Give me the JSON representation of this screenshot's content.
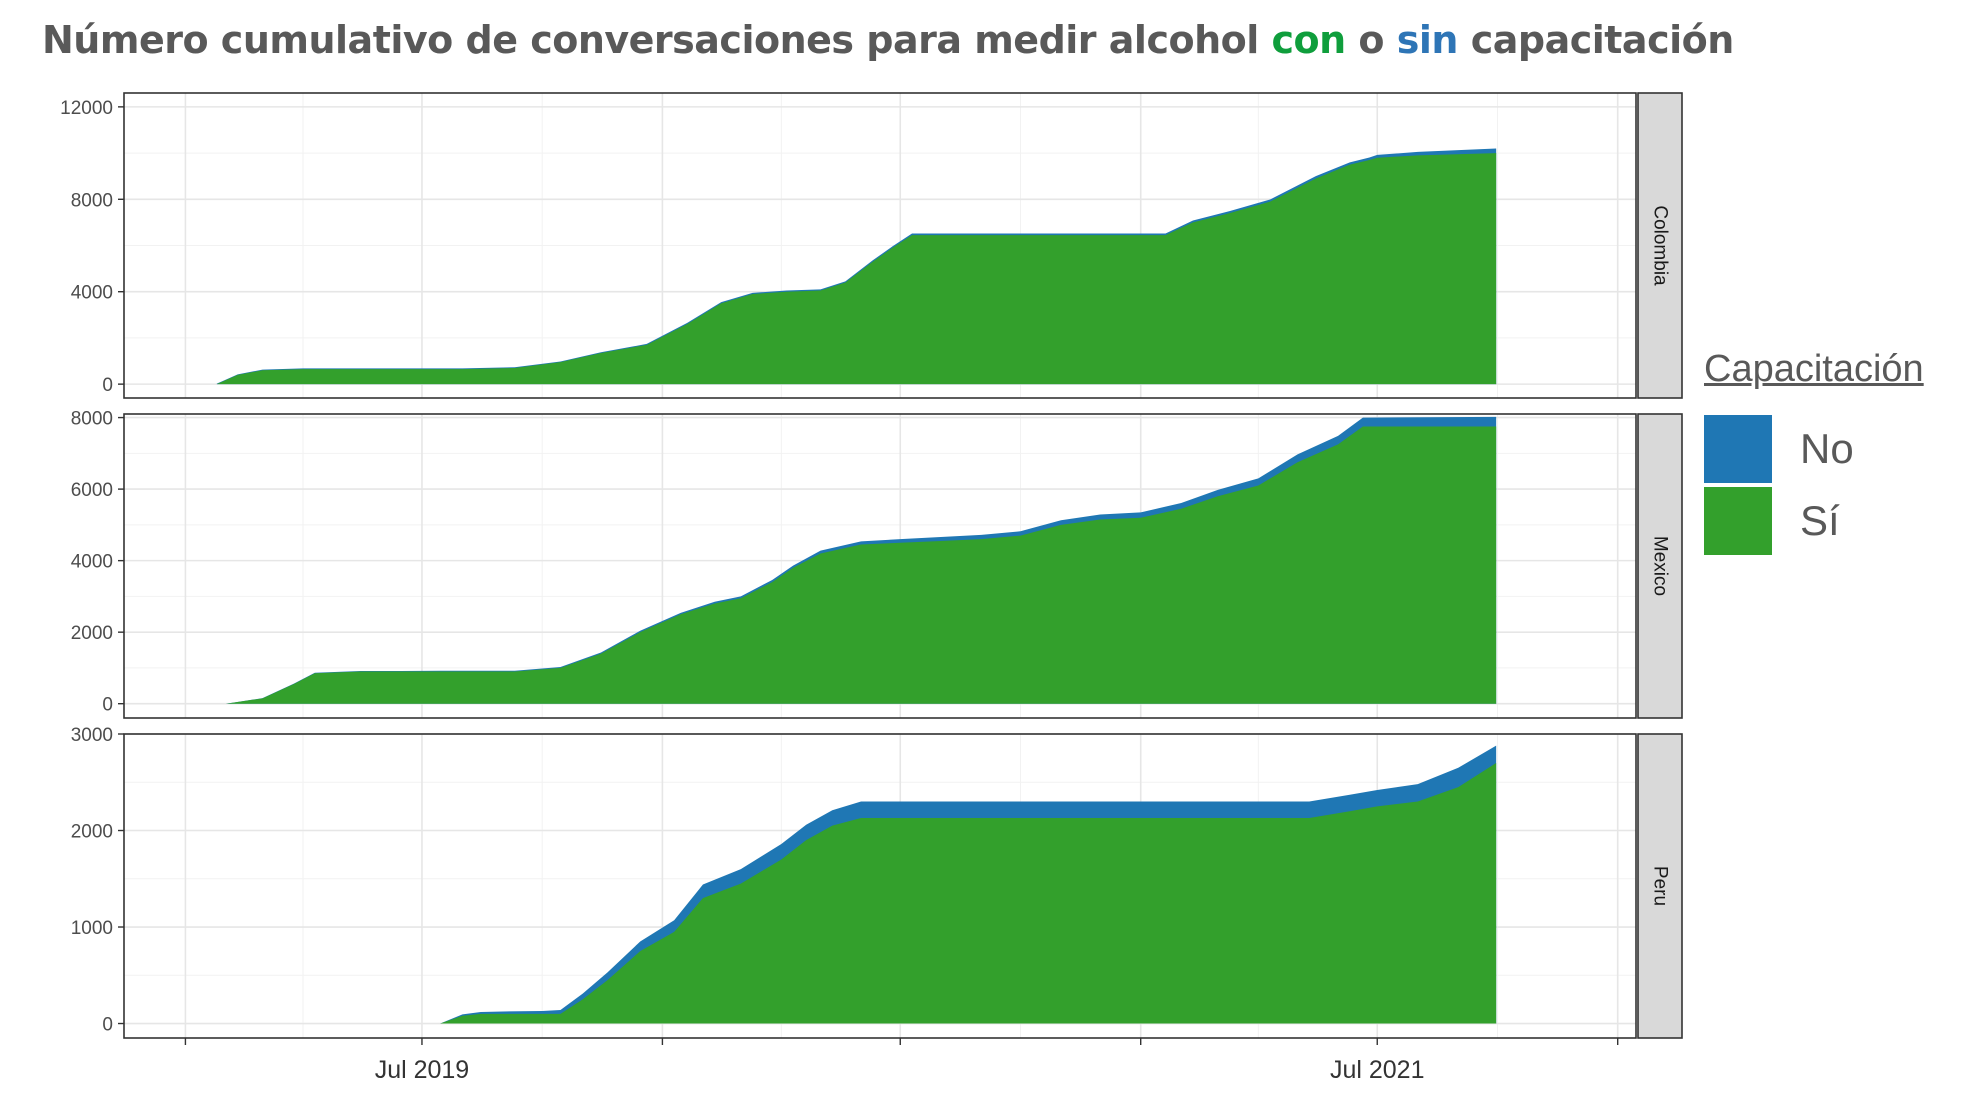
{
  "title": {
    "part1": "Número cumulativo de conversaciones para medir alcohol ",
    "part2": "con",
    "part3": " o ",
    "part4": "sin",
    "part5": " capacitación",
    "color_con": "#0f9e3c",
    "color_sin": "#2e75b6"
  },
  "legend": {
    "title": "Capacitación",
    "items": [
      {
        "label": "No",
        "color": "#1f77b4"
      },
      {
        "label": "Sí",
        "color": "#33a02c"
      }
    ]
  },
  "chart_data": {
    "type": "area",
    "stacked": true,
    "x_unit": "date",
    "x_ticks": [
      {
        "date": "2019-07-01",
        "label": "Jul 2019"
      },
      {
        "date": "2021-07-01",
        "label": "Jul 2021"
      }
    ],
    "x_gridlines": [
      "2019-01-01",
      "2019-07-01",
      "2020-01-01",
      "2020-07-01",
      "2021-01-01",
      "2021-07-01",
      "2022-01-01"
    ],
    "xlim": [
      "2018-11-15",
      "2022-01-15"
    ],
    "series_order": [
      "Sí",
      "No"
    ],
    "colors": {
      "No": "#1f77b4",
      "Sí": "#33a02c"
    },
    "grid": true,
    "legend_position": "right",
    "panels": [
      {
        "strip": "Colombia",
        "ylim": [
          -600,
          12600
        ],
        "yticks": [
          0,
          4000,
          8000,
          12000
        ],
        "x": [
          "2019-01-25",
          "2019-02-10",
          "2019-03-01",
          "2019-04-01",
          "2019-06-01",
          "2019-08-01",
          "2019-09-10",
          "2019-10-15",
          "2019-11-15",
          "2019-12-20",
          "2020-01-20",
          "2020-02-15",
          "2020-03-10",
          "2020-04-05",
          "2020-05-01",
          "2020-05-20",
          "2020-06-10",
          "2020-06-25",
          "2020-07-10",
          "2020-07-30",
          "2020-08-15",
          "2020-09-10",
          "2020-12-01",
          "2021-01-20",
          "2021-02-10",
          "2021-03-10",
          "2021-04-10",
          "2021-05-15",
          "2021-06-10",
          "2021-06-25",
          "2021-07-01",
          "2021-08-01",
          "2021-09-30"
        ],
        "Sí": [
          0,
          400,
          600,
          650,
          650,
          650,
          700,
          950,
          1350,
          1700,
          2600,
          3500,
          3900,
          4000,
          4050,
          4400,
          5300,
          5900,
          6450,
          6450,
          6450,
          6450,
          6450,
          6450,
          7000,
          7400,
          7900,
          8900,
          9500,
          9700,
          9800,
          9900,
          10000
        ],
        "No": [
          20,
          20,
          30,
          30,
          30,
          30,
          30,
          30,
          30,
          40,
          50,
          50,
          50,
          50,
          50,
          50,
          60,
          60,
          70,
          70,
          70,
          70,
          70,
          70,
          80,
          90,
          90,
          100,
          100,
          110,
          120,
          150,
          200
        ]
      },
      {
        "strip": "Mexico",
        "ylim": [
          -400,
          8100
        ],
        "yticks": [
          0,
          2000,
          4000,
          6000,
          8000
        ],
        "x": [
          "2019-02-01",
          "2019-03-01",
          "2019-03-25",
          "2019-04-10",
          "2019-05-15",
          "2019-06-15",
          "2019-07-15",
          "2019-08-15",
          "2019-09-10",
          "2019-10-15",
          "2019-11-15",
          "2019-12-15",
          "2020-01-15",
          "2020-02-10",
          "2020-03-01",
          "2020-03-25",
          "2020-04-10",
          "2020-05-01",
          "2020-06-01",
          "2020-07-01",
          "2020-08-01",
          "2020-09-01",
          "2020-10-01",
          "2020-11-01",
          "2020-12-01",
          "2021-01-01",
          "2021-02-01",
          "2021-03-01",
          "2021-04-01",
          "2021-05-01",
          "2021-06-01",
          "2021-06-20",
          "2021-09-30"
        ],
        "Sí": [
          0,
          150,
          550,
          850,
          900,
          900,
          900,
          900,
          900,
          1000,
          1400,
          2000,
          2500,
          2800,
          2950,
          3400,
          3800,
          4200,
          4450,
          4500,
          4550,
          4600,
          4700,
          5000,
          5150,
          5200,
          5450,
          5800,
          6100,
          6750,
          7250,
          7750,
          7750
        ],
        "No": [
          0,
          5,
          10,
          15,
          15,
          15,
          20,
          20,
          20,
          25,
          30,
          40,
          40,
          50,
          50,
          60,
          60,
          80,
          90,
          100,
          110,
          120,
          120,
          130,
          140,
          150,
          160,
          180,
          200,
          220,
          240,
          250,
          270
        ]
      },
      {
        "strip": "Peru",
        "ylim": [
          -150,
          3000
        ],
        "yticks": [
          0,
          1000,
          2000,
          3000
        ],
        "x": [
          "2019-07-15",
          "2019-08-01",
          "2019-08-15",
          "2019-09-01",
          "2019-10-01",
          "2019-10-15",
          "2019-11-01",
          "2019-11-20",
          "2019-12-15",
          "2020-01-10",
          "2020-02-01",
          "2020-03-01",
          "2020-04-01",
          "2020-04-20",
          "2020-05-10",
          "2020-06-01",
          "2020-06-10",
          "2021-05-10",
          "2021-06-10",
          "2021-07-01",
          "2021-08-01",
          "2021-09-01",
          "2021-09-30"
        ],
        "Sí": [
          0,
          80,
          100,
          100,
          100,
          100,
          250,
          450,
          750,
          950,
          1300,
          1450,
          1700,
          1900,
          2050,
          2130,
          2130,
          2130,
          2200,
          2250,
          2300,
          2450,
          2700
        ],
        "No": [
          0,
          15,
          20,
          25,
          30,
          40,
          60,
          80,
          100,
          120,
          140,
          150,
          160,
          160,
          160,
          170,
          170,
          170,
          170,
          170,
          180,
          200,
          180
        ]
      }
    ]
  }
}
